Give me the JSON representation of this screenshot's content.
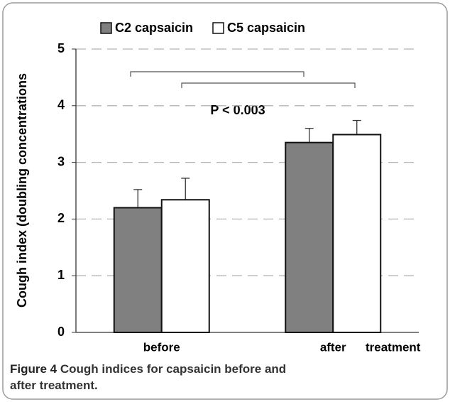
{
  "chart_data": {
    "type": "bar",
    "ylabel": "Cough index (doubling concentrations",
    "xlabel": "treatment",
    "categories": [
      "before",
      "after"
    ],
    "series": [
      {
        "name": "C2 capsaicin",
        "color": "#808080",
        "values": [
          2.2,
          3.35
        ],
        "errors": [
          0.32,
          0.25
        ]
      },
      {
        "name": "C5 capsaicin",
        "color": "#ffffff",
        "values": [
          2.34,
          3.49
        ],
        "errors": [
          0.38,
          0.25
        ]
      }
    ],
    "ylim": [
      0,
      5
    ],
    "yticks": [
      0,
      1,
      2,
      3,
      4,
      5
    ],
    "grid": true,
    "annotation": "P < 0.003",
    "caption_label": "Figure 4",
    "caption_text": "Cough indices for capsaicin before and after treatment."
  }
}
